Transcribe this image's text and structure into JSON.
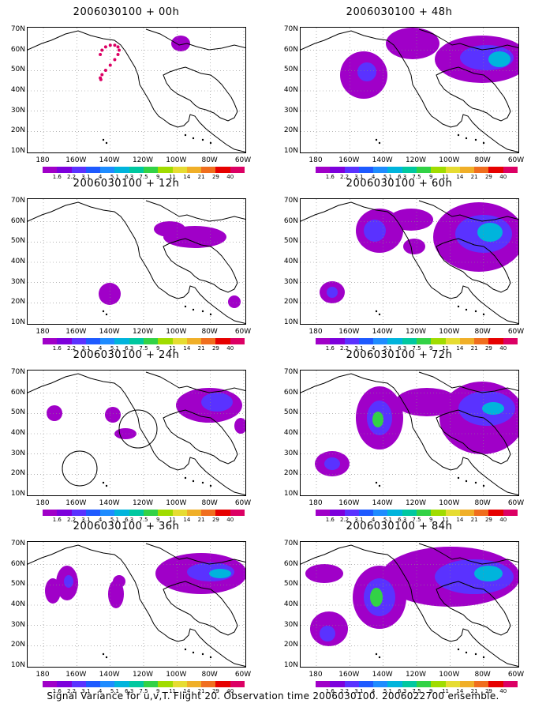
{
  "caption": "Signal Variance for u,v,T. Flight 20. Observation time 2006030100. 2006022700 ensemble.",
  "lat_labels": [
    "70N",
    "60N",
    "50N",
    "40N",
    "30N",
    "20N",
    "10N"
  ],
  "lon_labels": [
    "180",
    "160W",
    "140W",
    "120W",
    "100W",
    "80W",
    "60W"
  ],
  "colorbar": {
    "labels": [
      "1.6",
      "2.2",
      "3.1",
      "4",
      "5.1",
      "6.3",
      "7.5",
      "9",
      "11",
      "14",
      "21",
      "29",
      "40"
    ],
    "colors": [
      "#a000c8",
      "#7d00dc",
      "#5a32ff",
      "#1e5aff",
      "#1e8cff",
      "#00b4dc",
      "#00c8a0",
      "#32d246",
      "#a0dc00",
      "#e6dc32",
      "#f0af28",
      "#f06e1e",
      "#e60000",
      "#dc0064"
    ]
  },
  "panels": [
    {
      "id": "p00",
      "title": "2006030100 + 00h",
      "col": 0,
      "row": 0
    },
    {
      "id": "p12",
      "title": "2006030100 + 12h",
      "col": 0,
      "row": 1
    },
    {
      "id": "p24",
      "title": "2006030100 + 24h",
      "col": 0,
      "row": 2
    },
    {
      "id": "p36",
      "title": "2006030100 + 36h",
      "col": 0,
      "row": 3
    },
    {
      "id": "p48",
      "title": "2006030100 + 48h",
      "col": 1,
      "row": 0
    },
    {
      "id": "p60",
      "title": "2006030100 + 60h",
      "col": 1,
      "row": 1
    },
    {
      "id": "p72",
      "title": "2006030100 + 72h",
      "col": 1,
      "row": 2
    },
    {
      "id": "p84",
      "title": "2006030100 + 84h",
      "col": 1,
      "row": 3
    }
  ]
}
